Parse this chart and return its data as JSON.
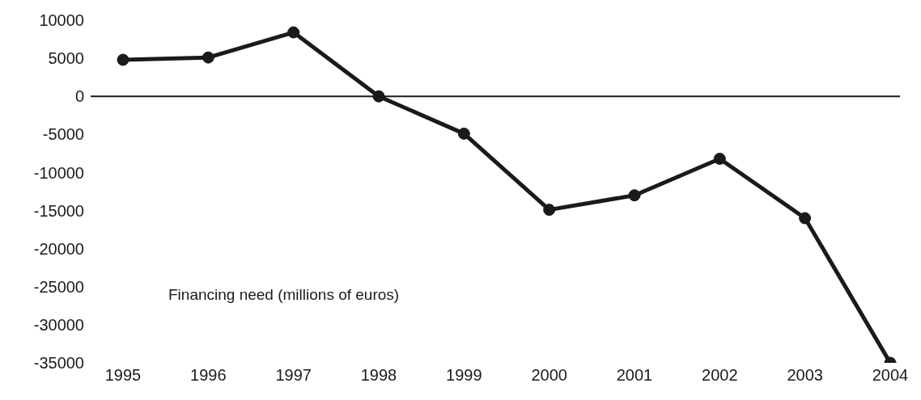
{
  "chart_data": {
    "type": "line",
    "categories": [
      "1995",
      "1996",
      "1997",
      "1998",
      "1999",
      "2000",
      "2001",
      "2002",
      "2003",
      "2004"
    ],
    "values": [
      4800,
      5100,
      8400,
      0,
      -4900,
      -14900,
      -13000,
      -8200,
      -16000,
      -35000
    ],
    "color": "#1a1a1a",
    "marker": "circle",
    "line_style": "solid",
    "ylim": [
      -35000,
      10000
    ],
    "yticks": [
      -35000,
      -30000,
      -25000,
      -20000,
      -15000,
      -10000,
      -5000,
      0,
      5000,
      10000
    ],
    "grid": false,
    "legend": false,
    "ref_lines": [
      {
        "axis": "y",
        "value": 0,
        "color": "#1a1a1a",
        "line_style": "solid"
      }
    ],
    "annotations": [
      {
        "text": "Financing need (millions of euros)"
      }
    ]
  }
}
